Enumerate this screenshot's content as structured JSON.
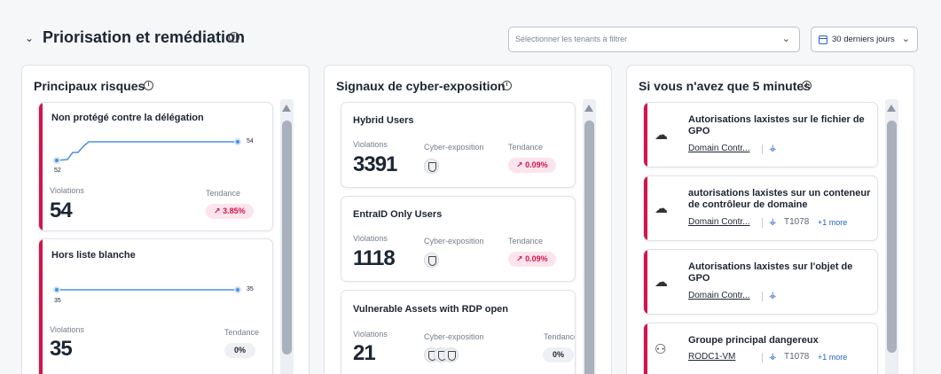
{
  "header": {
    "collapse_glyph": "⌄",
    "title": "Priorisation et remédiation",
    "info_glyph": "i",
    "tenant_placeholder": "Sélectionner les tenants à filtrer",
    "chevron_glyph": "⌄",
    "date_range_label": "30 derniers jours"
  },
  "risks": {
    "title": "Principaux risques",
    "items": [
      {
        "title": "Non protégé contre la délégation",
        "chart_start": "52",
        "chart_end": "54",
        "violations_label": "Violations",
        "violations": "54",
        "trend_label": "Tendance",
        "trend": "3.85%",
        "trend_icon": "trend-up-icon"
      },
      {
        "title": "Hors liste blanche",
        "chart_start": "35",
        "chart_end": "35",
        "violations_label": "Violations",
        "violations": "35",
        "trend_label": "Tendance",
        "trend": "0%"
      }
    ]
  },
  "signals": {
    "title": "Signaux de cyber-exposition",
    "items": [
      {
        "title": "Hybrid Users",
        "violations_label": "Violations",
        "violations": "3391",
        "exposure_label": "Cyber-exposition",
        "trend_label": "Tendance",
        "trend": "0.09%"
      },
      {
        "title": "EntraID Only Users",
        "violations_label": "Violations",
        "violations": "1118",
        "exposure_label": "Cyber-exposition",
        "trend_label": "Tendance",
        "trend": "0.09%"
      },
      {
        "title": "Vulnerable Assets with RDP open",
        "violations_label": "Violations",
        "violations": "21",
        "exposure_label": "Cyber-exposition",
        "trend_label": "Tendance",
        "trend": "0%"
      }
    ]
  },
  "five_minutes": {
    "title": "Si vous n'avez que 5 minutes",
    "items": [
      {
        "title": "Autorisations laxistes sur le fichier de GPO",
        "link": "Domain Contr...",
        "icon": "cloud-icon"
      },
      {
        "title": "autorisations laxistes sur un conteneur de contrôleur de domaine",
        "link": "Domain Contr...",
        "technique": "T1078",
        "more": "+1 more",
        "icon": "cloud-icon"
      },
      {
        "title": "Autorisations laxistes sur l'objet de GPO",
        "link": "Domain Contr...",
        "icon": "cloud-icon"
      },
      {
        "title": "Groupe principal dangereux",
        "link": "RODC1-VM",
        "technique": "T1078",
        "more": "+1 more",
        "icon": "user-settings-icon"
      }
    ]
  },
  "colors": {
    "accent_red": "#d3144d",
    "chart_blue": "#4a90e2",
    "link_blue": "#2563c9"
  }
}
